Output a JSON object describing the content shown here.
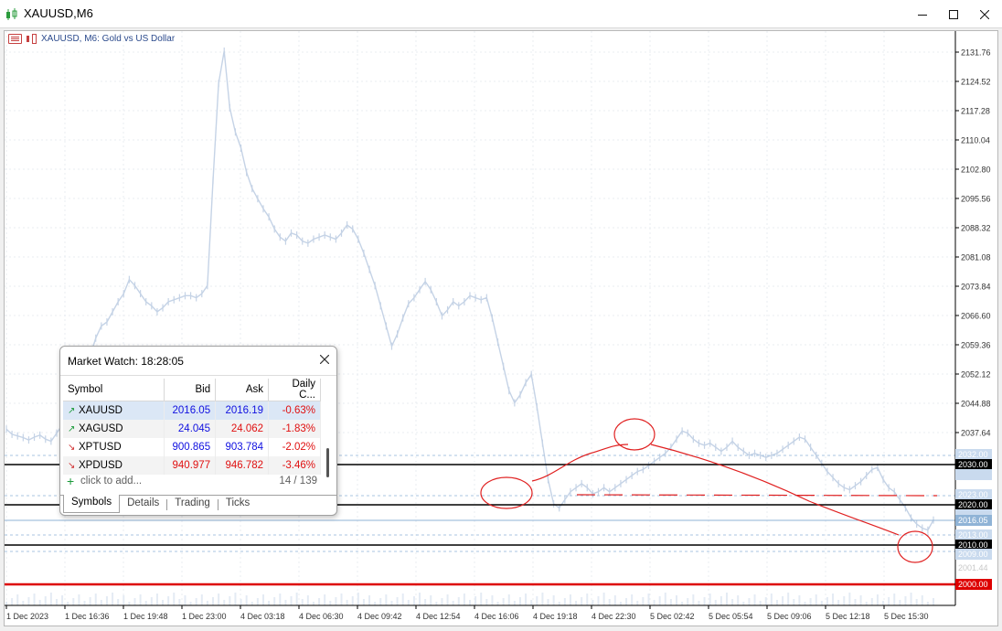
{
  "window": {
    "title": "XAUUSD,M6",
    "minimize_icon": "minimize-icon",
    "maximize_icon": "maximize-icon",
    "close_icon": "close-icon"
  },
  "chart": {
    "header": "XAUUSD, M6:  Gold vs US Dollar",
    "colors": {
      "price": "#c5d3e6",
      "grid": "#e8ecf2",
      "level_line": "#000000",
      "support_line": "#dd0000",
      "annotation": "#e02020",
      "dash_line": "#8fb3d6"
    }
  },
  "chart_data": {
    "type": "line",
    "title": "XAUUSD, M6:  Gold vs US Dollar",
    "xlabel": "",
    "ylabel": "",
    "ylim": [
      1998,
      2135
    ],
    "grid": true,
    "y_ticks": [
      "2131.76",
      "2124.52",
      "2117.28",
      "2110.04",
      "2102.80",
      "2095.56",
      "2088.32",
      "2081.08",
      "2073.84",
      "2066.60",
      "2059.36",
      "2052.12",
      "2044.88",
      "2037.64"
    ],
    "x_ticks": [
      "1 Dec 2023",
      "1 Dec 16:36",
      "1 Dec 19:48",
      "1 Dec 23:00",
      "4 Dec 03:18",
      "4 Dec 06:30",
      "4 Dec 09:42",
      "4 Dec 12:54",
      "4 Dec 16:06",
      "4 Dec 19:18",
      "4 Dec 22:30",
      "5 Dec 02:42",
      "5 Dec 05:54",
      "5 Dec 09:06",
      "5 Dec 12:18",
      "5 Dec 15:30"
    ],
    "series": [
      {
        "values": [
          2038.5,
          2037.2,
          2036.8,
          2036.4,
          2035.8,
          2036.5,
          2037.0,
          2036.0,
          2035.5,
          2037.5,
          2039.5,
          2041.5,
          2044.5,
          2049.0,
          2052.5,
          2056.5,
          2061.0,
          2064.0,
          2065.0,
          2067.5,
          2070.0,
          2072.0,
          2075.5,
          2074.0,
          2072.0,
          2070.0,
          2069.0,
          2067.5,
          2068.5,
          2070.0,
          2070.5,
          2071.0,
          2071.5,
          2071.5,
          2071.0,
          2072.0,
          2074.0,
          2100.0,
          2124.0,
          2132.0,
          2118.0,
          2112.0,
          2108.0,
          2102.0,
          2098.0,
          2095.5,
          2093.0,
          2091.0,
          2088.0,
          2086.0,
          2085.0,
          2087.0,
          2086.5,
          2085.0,
          2084.5,
          2085.5,
          2086.0,
          2086.5,
          2086.0,
          2085.5,
          2087.0,
          2089.0,
          2088.0,
          2085.5,
          2082.0,
          2078.0,
          2074.0,
          2069.0,
          2064.0,
          2059.0,
          2062.0,
          2066.0,
          2069.5,
          2071.0,
          2073.0,
          2075.0,
          2073.0,
          2070.0,
          2066.5,
          2068.0,
          2070.0,
          2069.0,
          2070.0,
          2071.5,
          2071.0,
          2070.5,
          2071.0,
          2066.0,
          2060.0,
          2054.0,
          2048.0,
          2045.0,
          2047.0,
          2050.0,
          2052.0,
          2044.0,
          2035.0,
          2026.0,
          2020.0,
          2019.0,
          2021.0,
          2023.0,
          2024.0,
          2025.0,
          2024.0,
          2022.5,
          2023.0,
          2024.0,
          2023.0,
          2024.0,
          2025.0,
          2026.0,
          2027.0,
          2028.0,
          2028.5,
          2029.5,
          2030.5,
          2031.5,
          2032.5,
          2034.0,
          2036.0,
          2038.0,
          2037.5,
          2036.0,
          2035.0,
          2034.5,
          2035.0,
          2034.0,
          2033.0,
          2034.0,
          2035.5,
          2034.0,
          2033.0,
          2032.0,
          2032.5,
          2032.0,
          2031.5,
          2032.0,
          2032.5,
          2033.5,
          2034.5,
          2035.5,
          2036.5,
          2036.0,
          2034.0,
          2032.0,
          2030.0,
          2028.0,
          2026.5,
          2025.0,
          2024.0,
          2023.5,
          2024.5,
          2025.5,
          2027.0,
          2028.5,
          2029.0,
          2026.0,
          2024.0,
          2023.0,
          2021.0,
          2019.0,
          2016.5,
          2015.0,
          2014.0,
          2013.5,
          2016.0
        ]
      }
    ]
  },
  "price_labels": {
    "bid": "2016.05",
    "level_2030": "2030.00",
    "level_2020": "2020.00",
    "level_2010": "2010.00",
    "level_2000": "2000.00",
    "faint_2032": "2032.00",
    "faint_2023": "2023.00",
    "faint_2013": "2013.00",
    "faint_2009": "2009.00",
    "faint_2001": "2001.44"
  },
  "market_watch": {
    "title": "Market Watch: 18:28:05",
    "close_icon": "close-icon",
    "columns": {
      "symbol": "Symbol",
      "bid": "Bid",
      "ask": "Ask",
      "change": "Daily C..."
    },
    "rows": [
      {
        "symbol": "XAUUSD",
        "bid": "2016.05",
        "ask": "2016.19",
        "change": "-0.63%",
        "direction": "up"
      },
      {
        "symbol": "XAGUSD",
        "bid": "24.045",
        "ask": "24.062",
        "change": "-1.83%",
        "direction": "up"
      },
      {
        "symbol": "XPTUSD",
        "bid": "900.865",
        "ask": "903.784",
        "change": "-2.02%",
        "direction": "down"
      },
      {
        "symbol": "XPDUSD",
        "bid": "940.977",
        "ask": "946.782",
        "change": "-3.46%",
        "direction": "down"
      }
    ],
    "add_label": "click to add...",
    "count": "14 / 139",
    "tabs": [
      "Symbols",
      "Details",
      "Trading",
      "Ticks"
    ]
  }
}
